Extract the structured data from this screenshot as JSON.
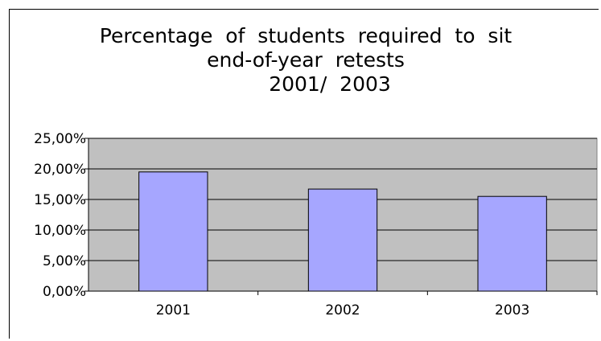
{
  "chart_data": {
    "type": "bar",
    "title_lines": [
      "Percentage  of  students  required  to  sit",
      "end-of-year  retests",
      "2001/  2003"
    ],
    "categories": [
      "2001",
      "2002",
      "2003"
    ],
    "values": [
      19.5,
      16.7,
      15.5
    ],
    "ylim": [
      0,
      25
    ],
    "ytick_values": [
      0,
      5,
      10,
      15,
      20,
      25
    ],
    "ytick_labels": [
      "0,00%",
      "5,00%",
      "10,00%",
      "15,00%",
      "20,00%",
      "25,00%"
    ],
    "xlabel": "",
    "ylabel": "",
    "grid": true,
    "plot_background": "#c0c0c0",
    "bar_color": "#a6a6ff",
    "bar_border": "#000000"
  }
}
